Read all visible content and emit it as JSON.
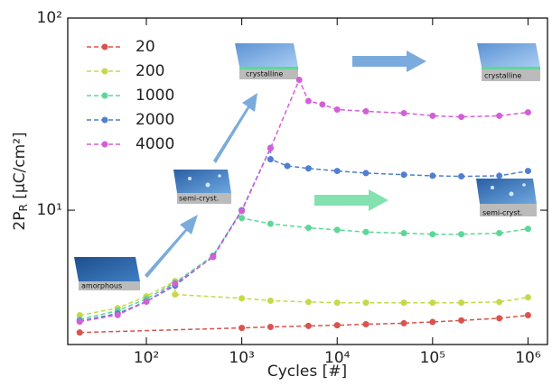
{
  "chart_data": {
    "type": "line",
    "xlabel": "Cycles [#]",
    "ylabel": [
      "2P",
      "R",
      " [μC/cm²]"
    ],
    "xscale": "log",
    "yscale": "log",
    "xlim": [
      15,
      1600000
    ],
    "ylim": [
      2,
      100
    ],
    "xticks": [
      {
        "value": 100,
        "label": "10²"
      },
      {
        "value": 1000,
        "label": "10³"
      },
      {
        "value": 10000,
        "label": "10⁴"
      },
      {
        "value": 100000,
        "label": "10⁵"
      },
      {
        "value": 1000000,
        "label": "10⁶"
      }
    ],
    "yticks": [
      {
        "value": 10,
        "label": "10¹"
      },
      {
        "value": 100,
        "label": "10²"
      }
    ],
    "legend": "upper left",
    "series": [
      {
        "name": "20",
        "color": "#d9534f",
        "x": [
          20,
          1000,
          2000,
          5000,
          10000,
          20000,
          50000,
          100000,
          200000,
          500000,
          1000000
        ],
        "values": [
          2.31,
          2.44,
          2.47,
          2.5,
          2.52,
          2.55,
          2.58,
          2.62,
          2.67,
          2.74,
          2.84
        ]
      },
      {
        "name": "200",
        "color": "#c6d94a",
        "x": [
          20,
          50,
          100,
          200,
          200,
          1000,
          2000,
          5000,
          10000,
          20000,
          50000,
          100000,
          200000,
          500000,
          1000000
        ],
        "values": [
          2.84,
          3.09,
          3.56,
          4.28,
          3.64,
          3.48,
          3.38,
          3.33,
          3.3,
          3.3,
          3.3,
          3.3,
          3.3,
          3.33,
          3.52
        ]
      },
      {
        "name": "1000",
        "color": "#5bd896",
        "x": [
          20,
          50,
          100,
          200,
          500,
          1000,
          1000,
          2000,
          5000,
          10000,
          20000,
          50000,
          100000,
          200000,
          500000,
          1000000
        ],
        "values": [
          2.7,
          3.0,
          3.45,
          4.2,
          5.8,
          10,
          9.1,
          8.5,
          8.1,
          7.9,
          7.7,
          7.6,
          7.5,
          7.5,
          7.6,
          8.0
        ]
      },
      {
        "name": "2000",
        "color": "#4f7fd0",
        "x": [
          20,
          50,
          100,
          200,
          500,
          1000,
          2000,
          2000,
          3000,
          5000,
          10000,
          20000,
          50000,
          100000,
          200000,
          500000,
          1000000
        ],
        "values": [
          2.65,
          2.9,
          3.35,
          4.05,
          5.75,
          10,
          21.1,
          18.4,
          17.0,
          16.5,
          16.0,
          15.6,
          15.3,
          15.1,
          15.0,
          15.1,
          16.0
        ]
      },
      {
        "name": "4000",
        "color": "#d35fd8",
        "x": [
          20,
          50,
          100,
          200,
          500,
          1000,
          2000,
          4000,
          5000,
          7000,
          10000,
          20000,
          50000,
          100000,
          200000,
          500000,
          1000000
        ],
        "values": [
          2.63,
          2.85,
          3.34,
          4.15,
          5.7,
          9.9,
          21,
          47.7,
          37.0,
          35.5,
          33.4,
          32.7,
          32.0,
          31.0,
          30.6,
          31.0,
          32.3
        ]
      }
    ],
    "annotations": [
      "amorphous",
      "semi-cryst.",
      "crystalline",
      "crystalline",
      "semi-cryst."
    ]
  }
}
